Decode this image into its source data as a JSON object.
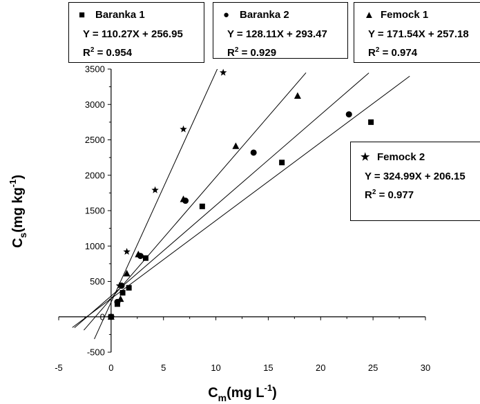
{
  "chart_data": {
    "type": "scatter",
    "title": "",
    "xlabel": {
      "main": "C",
      "sub": "m",
      "units": "(mg L",
      "sup": "-1",
      "close": ")"
    },
    "ylabel": {
      "main": "C",
      "sub": "s",
      "units": "(mg kg",
      "sup": "-1",
      "close": ")"
    },
    "xlim": [
      -5,
      30
    ],
    "ylim": [
      -500,
      3500
    ],
    "xticks": [
      -5,
      0,
      5,
      10,
      15,
      20,
      25,
      30
    ],
    "yticks": [
      -500,
      0,
      500,
      1000,
      1500,
      2000,
      2500,
      3000,
      3500
    ],
    "grid": false,
    "series": [
      {
        "name": "Baranka 1",
        "marker": "square",
        "symbol": "■",
        "equation": "Y = 110.27X + 256.95",
        "r2_prefix": "R",
        "r2_value": " = 0.954",
        "slope": 110.27,
        "intercept": 256.95,
        "fit_x": [
          -3.7,
          28.5
        ],
        "points": [
          [
            0.0,
            0
          ],
          [
            0.6,
            180
          ],
          [
            1.1,
            340
          ],
          [
            1.7,
            410
          ],
          [
            3.3,
            830
          ],
          [
            8.7,
            1560
          ],
          [
            16.3,
            2180
          ],
          [
            24.8,
            2750
          ]
        ]
      },
      {
        "name": "Baranka 2",
        "marker": "circle",
        "symbol": "●",
        "equation": "Y = 128.11X + 293.47",
        "r2_prefix": "R",
        "r2_value": " = 0.929",
        "slope": 128.11,
        "intercept": 293.47,
        "fit_x": [
          -3.5,
          24.6
        ],
        "points": [
          [
            0.0,
            0
          ],
          [
            0.6,
            210
          ],
          [
            1.0,
            440
          ],
          [
            2.8,
            860
          ],
          [
            7.1,
            1640
          ],
          [
            13.6,
            2320
          ],
          [
            22.7,
            2860
          ]
        ]
      },
      {
        "name": "Femock 1",
        "marker": "triangle",
        "symbol": "▲",
        "equation": "Y = 171.54X + 257.18",
        "r2_prefix": "R",
        "r2_value": " = 0.974",
        "slope": 171.54,
        "intercept": 257.18,
        "fit_x": [
          -2.6,
          18.6
        ],
        "points": [
          [
            0.0,
            0
          ],
          [
            0.9,
            250
          ],
          [
            1.5,
            610
          ],
          [
            2.6,
            880
          ],
          [
            6.9,
            1660
          ],
          [
            11.9,
            2410
          ],
          [
            17.8,
            3120
          ]
        ]
      },
      {
        "name": "Femock 2",
        "marker": "star",
        "symbol": "★",
        "equation": "Y = 324.99X + 206.15",
        "r2_prefix": "R",
        "r2_value": " = 0.977",
        "slope": 324.99,
        "intercept": 206.15,
        "fit_x": [
          -1.6,
          10.2
        ],
        "points": [
          [
            0.0,
            0
          ],
          [
            0.8,
            440
          ],
          [
            1.5,
            920
          ],
          [
            4.2,
            1790
          ],
          [
            6.9,
            2650
          ],
          [
            10.7,
            3450
          ]
        ]
      }
    ]
  }
}
